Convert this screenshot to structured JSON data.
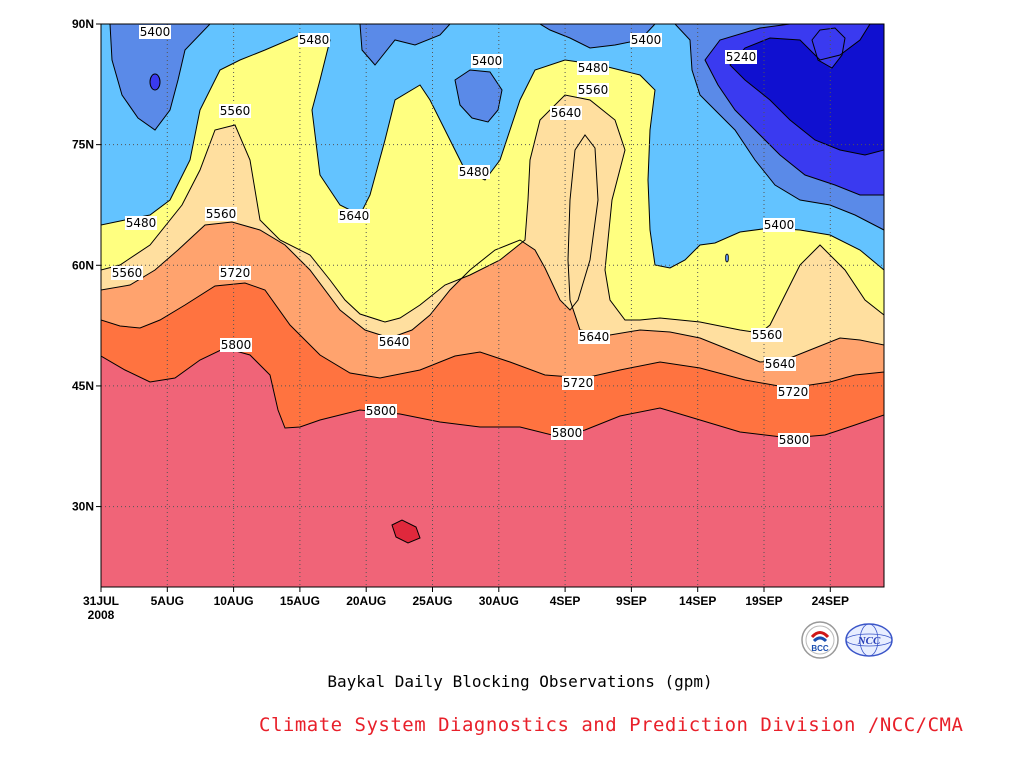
{
  "chart_data": {
    "type": "heatmap",
    "subtype": "filled contour (time-latitude Hovmoller)",
    "title": "Baykal Daily Blocking Observations (gpm)",
    "x_ticks": [
      "31JUL\n2008",
      "5AUG",
      "10AUG",
      "15AUG",
      "20AUG",
      "25AUG",
      "30AUG",
      "4SEP",
      "9SEP",
      "14SEP",
      "19SEP",
      "24SEP"
    ],
    "y_ticks": [
      "30N",
      "45N",
      "60N",
      "75N",
      "90N"
    ],
    "x_range": [
      "2008-07-31",
      "2008-09-28"
    ],
    "y_range": [
      20,
      90
    ],
    "grid": true,
    "contour_levels": [
      5240,
      5320,
      5400,
      5480,
      5560,
      5640,
      5720,
      5800,
      5880
    ],
    "colors": {
      "below_5240": "#1010d0",
      "5240_5320": "#3a3af0",
      "5320_5400": "#5a8ae8",
      "5400_5480": "#63c3ff",
      "5480_5560": "#ffff80",
      "5560_5640": "#ffdf9f",
      "5640_5720": "#ffa36e",
      "5720_5800": "#ff7340",
      "5800_5880": "#f06478",
      "above_5880": "#e0283c"
    },
    "contour_labels": [
      {
        "text": "5400"
      },
      {
        "text": "5480"
      },
      {
        "text": "5400"
      },
      {
        "text": "5400"
      },
      {
        "text": "5480"
      },
      {
        "text": "5560"
      },
      {
        "text": "5240"
      },
      {
        "text": "5560"
      },
      {
        "text": "5640"
      },
      {
        "text": "5480"
      },
      {
        "text": "5480"
      },
      {
        "text": "5640"
      },
      {
        "text": "5560"
      },
      {
        "text": "5400"
      },
      {
        "text": "5720"
      },
      {
        "text": "5560"
      },
      {
        "text": "5640"
      },
      {
        "text": "5640"
      },
      {
        "text": "5560"
      },
      {
        "text": "5800"
      },
      {
        "text": "5640"
      },
      {
        "text": "5720"
      },
      {
        "text": "5720"
      },
      {
        "text": "5800"
      },
      {
        "text": "5800"
      },
      {
        "text": "5800"
      }
    ]
  },
  "footer": {
    "credit": "Climate System Diagnostics and Prediction Division /NCC/CMA",
    "logo_left_text": "BCC",
    "logo_right_text": "NCC"
  }
}
